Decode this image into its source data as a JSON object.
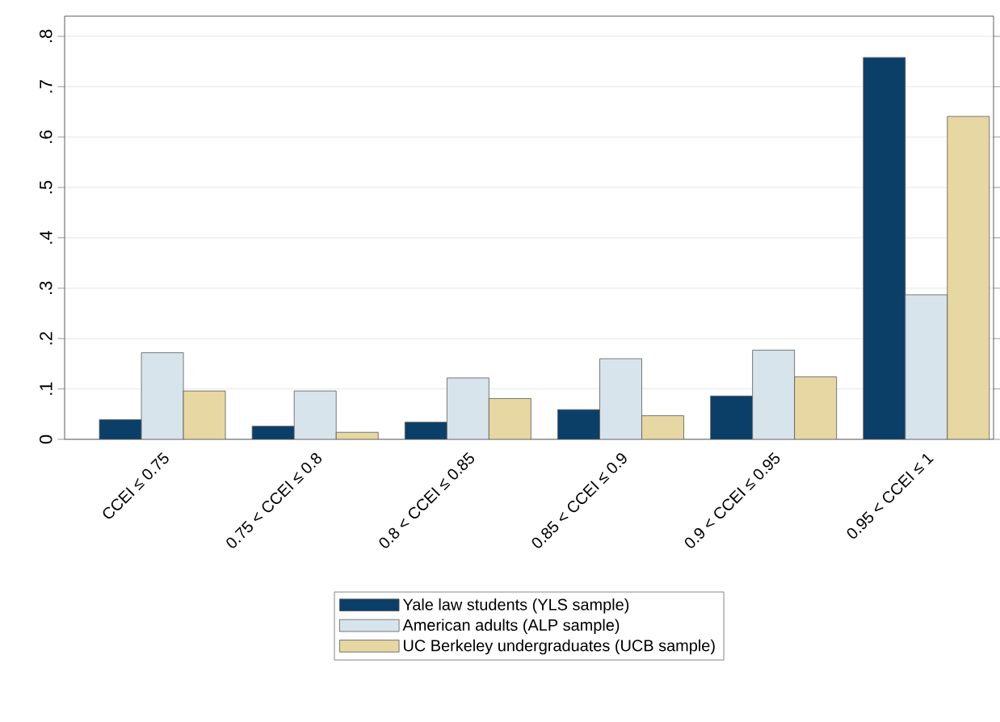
{
  "chart_data": {
    "type": "bar",
    "categories": [
      "CCEI ≤ 0.75",
      "0.75 < CCEI ≤ 0.8",
      "0.8 < CCEI ≤ 0.85",
      "0.85 < CCEI ≤ 0.9",
      "0.9 < CCEI ≤ 0.95",
      "0.95 < CCEI ≤ 1"
    ],
    "series": [
      {
        "name": "Yale law students (YLS sample)",
        "color": "#0b3f68",
        "values": [
          0.039,
          0.026,
          0.034,
          0.059,
          0.086,
          0.758
        ]
      },
      {
        "name": "American adults (ALP sample)",
        "color": "#d7e4ec",
        "values": [
          0.172,
          0.096,
          0.122,
          0.16,
          0.177,
          0.287
        ]
      },
      {
        "name": "UC Berkeley undergraduates (UCB sample)",
        "color": "#e6d7a3",
        "values": [
          0.096,
          0.014,
          0.081,
          0.047,
          0.124,
          0.641
        ]
      }
    ],
    "ylim": [
      0,
      0.84
    ],
    "yticks": [
      0,
      {
        "value": 0.1,
        "label": ".1"
      },
      {
        "value": 0.2,
        "label": ".2"
      },
      {
        "value": 0.3,
        "label": ".3"
      },
      {
        "value": 0.4,
        "label": ".4"
      },
      {
        "value": 0.5,
        "label": ".5"
      },
      {
        "value": 0.6,
        "label": ".6"
      },
      {
        "value": 0.7,
        "label": ".7"
      },
      {
        "value": 0.8,
        "label": ".8"
      }
    ],
    "grid": "y",
    "legend": "bottom"
  }
}
